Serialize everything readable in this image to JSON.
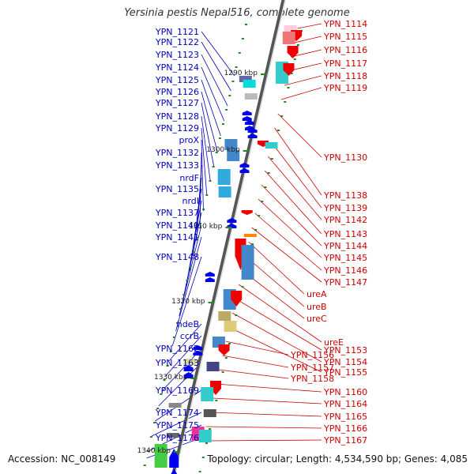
{
  "title": "Yersinia pestis Nepal516, complete genome",
  "accession": "Accession: NC_008149",
  "summary": "Topology: circular; Length: 4,534,590 bp; Genes: 4,085",
  "colors": {
    "reverse_label": "#0000bb",
    "forward_label": "#cc0000",
    "reverse_arrow": "#0000ee",
    "forward_arrow": "#ee0000",
    "backbone": "#888888",
    "tick": "#228822"
  },
  "ticks": [
    "1290 kbp",
    "1300 kbp",
    "1310 kbp",
    "1320 kbp",
    "1330 kbp",
    "1340 kbp"
  ],
  "reverse_genes": [
    "YPN_1121",
    "YPN_1122",
    "YPN_1123",
    "YPN_1124",
    "YPN_1125",
    "YPN_1126",
    "YPN_1127",
    "YPN_1128",
    "YPN_1129",
    "proX",
    "YPN_1132",
    "YPN_1133",
    "nrdF",
    "YPN_1135",
    "nrdI",
    "YPN_1137",
    "YPN_1140",
    "YPN_1141",
    "YPN_1148",
    "hdeB",
    "ccrB",
    "YPN_1162",
    "YPN_1163",
    "YPN_1169",
    "YPN_1174",
    "YPN_1175",
    "YPN_1176"
  ],
  "forward_genes": [
    "YPN_1114",
    "YPN_1115",
    "YPN_1116",
    "YPN_1117",
    "YPN_1118",
    "YPN_1119",
    "YPN_1130",
    "YPN_1138",
    "YPN_1139",
    "YPN_1142",
    "YPN_1143",
    "YPN_1144",
    "YPN_1145",
    "YPN_1146",
    "YPN_1147",
    "ureA",
    "ureB",
    "ureC",
    "ureE",
    "YPN_1153",
    "YPN_1154",
    "YPN_1155",
    "YPN_1156",
    "YPN_1157",
    "YPN_1158",
    "YPN_1160",
    "YPN_1164",
    "YPN_1165",
    "YPN_1166",
    "YPN_1167"
  ]
}
